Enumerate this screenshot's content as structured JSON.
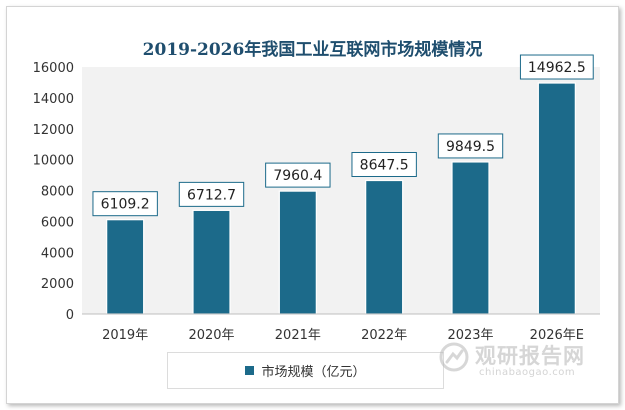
{
  "chart_data": {
    "type": "bar",
    "title": "2019-2026年我国工业互联网市场规模情况",
    "categories": [
      "2019年",
      "2020年",
      "2021年",
      "2022年",
      "2023年",
      "2026年E"
    ],
    "series": [
      {
        "name": "市场规模（亿元）",
        "values": [
          6109.2,
          6712.7,
          7960.4,
          8647.5,
          9849.5,
          14962.5
        ]
      }
    ],
    "data_labels": [
      "6109.2",
      "6712.7",
      "7960.4",
      "8647.5",
      "9849.5",
      "14962.5"
    ],
    "yticks": [
      "0",
      "2000",
      "4000",
      "6000",
      "8000",
      "10000",
      "12000",
      "14000",
      "16000"
    ],
    "ylim": [
      0,
      16000
    ],
    "xlabel": "",
    "ylabel": "",
    "grid": false,
    "legend_position": "bottom",
    "bar_color": "#1c6a8a",
    "plot_background": "#f2f2f2"
  },
  "watermark": {
    "brand": "观研报告网",
    "url": "chinabaogao.com"
  }
}
